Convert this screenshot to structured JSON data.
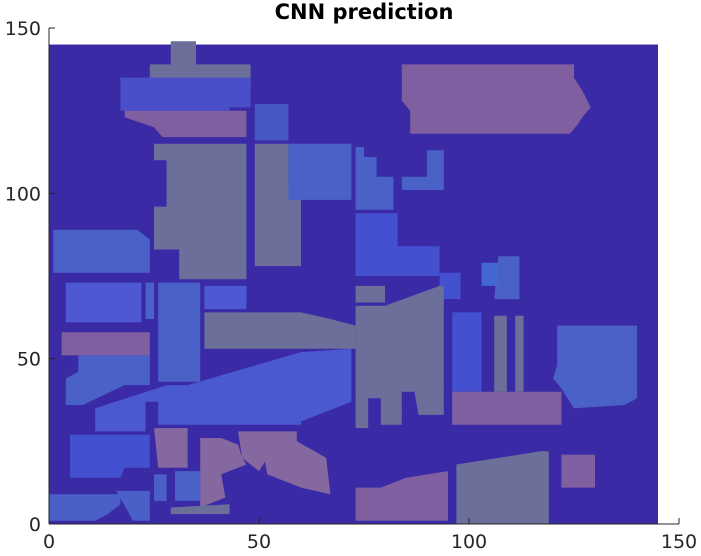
{
  "chart_data": {
    "type": "heatmap",
    "title": "CNN prediction",
    "xlabel": "",
    "ylabel": "",
    "xlim": [
      0,
      150
    ],
    "ylim": [
      0,
      150
    ],
    "data_extent": {
      "x": [
        0,
        145
      ],
      "y": [
        0,
        145
      ]
    },
    "xticks": [
      0,
      50,
      100,
      150
    ],
    "yticks": [
      0,
      50,
      100,
      150
    ],
    "grid": false,
    "colors": {
      "background_class": "#3b2aa6",
      "axis": "#262626"
    },
    "regions": [
      {
        "class": "grey",
        "color": "#6a6e98",
        "polygon": [
          [
            29,
            146
          ],
          [
            29,
            139
          ],
          [
            24,
            139
          ],
          [
            24,
            134
          ],
          [
            36,
            134
          ],
          [
            36,
            132
          ],
          [
            48,
            132
          ],
          [
            48,
            139
          ],
          [
            35,
            139
          ],
          [
            35,
            146
          ]
        ]
      },
      {
        "class": "blue",
        "color": "#4a4fc9",
        "polygon": [
          [
            17,
            135
          ],
          [
            48,
            135
          ],
          [
            48,
            126
          ],
          [
            43,
            126
          ],
          [
            43,
            125
          ],
          [
            17,
            125
          ]
        ]
      },
      {
        "class": "mauve",
        "color": "#7f5f9f",
        "polygon": [
          [
            18,
            125
          ],
          [
            47,
            125
          ],
          [
            47,
            117
          ],
          [
            27,
            117
          ],
          [
            25,
            120
          ],
          [
            18,
            123
          ]
        ]
      },
      {
        "class": "blue",
        "color": "#4758c6",
        "polygon": [
          [
            49,
            127
          ],
          [
            57,
            127
          ],
          [
            57,
            116
          ],
          [
            49,
            116
          ]
        ]
      },
      {
        "class": "grey",
        "color": "#6c6f9a",
        "polygon": [
          [
            25,
            115
          ],
          [
            47,
            115
          ],
          [
            47,
            74
          ],
          [
            31,
            74
          ],
          [
            31,
            83
          ],
          [
            25,
            83
          ],
          [
            25,
            96
          ],
          [
            28,
            96
          ],
          [
            28,
            110
          ],
          [
            25,
            110
          ]
        ]
      },
      {
        "class": "grey",
        "color": "#6c6f9a",
        "polygon": [
          [
            49,
            115
          ],
          [
            57,
            115
          ],
          [
            57,
            103
          ],
          [
            60,
            103
          ],
          [
            60,
            87
          ],
          [
            60,
            78
          ],
          [
            49,
            78
          ]
        ]
      },
      {
        "class": "blue",
        "color": "#4a62c8",
        "polygon": [
          [
            57,
            115
          ],
          [
            72,
            115
          ],
          [
            72,
            98
          ],
          [
            57,
            98
          ]
        ]
      },
      {
        "class": "blue",
        "color": "#4a62c8",
        "polygon": [
          [
            73,
            114
          ],
          [
            75,
            114
          ],
          [
            75,
            111
          ],
          [
            78,
            111
          ],
          [
            78,
            105
          ],
          [
            82,
            105
          ],
          [
            82,
            95
          ],
          [
            73,
            95
          ]
        ]
      },
      {
        "class": "blue",
        "color": "#4a62c8",
        "polygon": [
          [
            90,
            113
          ],
          [
            94,
            113
          ],
          [
            94,
            101
          ],
          [
            84,
            101
          ],
          [
            84,
            105
          ],
          [
            90,
            105
          ]
        ]
      },
      {
        "class": "mauve",
        "color": "#7f5f9f",
        "polygon": [
          [
            84,
            139
          ],
          [
            125,
            139
          ],
          [
            125,
            135
          ],
          [
            127,
            131
          ],
          [
            129,
            126
          ],
          [
            127,
            123
          ],
          [
            126,
            121
          ],
          [
            124,
            118
          ],
          [
            86,
            118
          ],
          [
            86,
            125
          ],
          [
            84,
            128
          ]
        ]
      },
      {
        "class": "blue",
        "color": "#4350d0",
        "polygon": [
          [
            73,
            94
          ],
          [
            83,
            94
          ],
          [
            83,
            84
          ],
          [
            93,
            84
          ],
          [
            93,
            75
          ],
          [
            73,
            75
          ]
        ]
      },
      {
        "class": "blue",
        "color": "#4a62c8",
        "polygon": [
          [
            1,
            89
          ],
          [
            21,
            89
          ],
          [
            24,
            86
          ],
          [
            24,
            76
          ],
          [
            1,
            76
          ]
        ]
      },
      {
        "class": "blue",
        "color": "#4a62c8",
        "polygon": [
          [
            107,
            81
          ],
          [
            112,
            81
          ],
          [
            112,
            68
          ],
          [
            106,
            68
          ]
        ]
      },
      {
        "class": "blue",
        "color": "#4468d2",
        "polygon": [
          [
            103,
            79
          ],
          [
            107,
            79
          ],
          [
            107,
            72
          ],
          [
            103,
            72
          ]
        ]
      },
      {
        "class": "blue",
        "color": "#4350d0",
        "polygon": [
          [
            93,
            76
          ],
          [
            98,
            76
          ],
          [
            98,
            68
          ],
          [
            93,
            68
          ]
        ]
      },
      {
        "class": "blue",
        "color": "#4f58d3",
        "polygon": [
          [
            4,
            73
          ],
          [
            22,
            73
          ],
          [
            22,
            61
          ],
          [
            4,
            61
          ]
        ]
      },
      {
        "class": "blue",
        "color": "#4a62c8",
        "polygon": [
          [
            23,
            73
          ],
          [
            25,
            73
          ],
          [
            25,
            62
          ],
          [
            23,
            62
          ]
        ]
      },
      {
        "class": "blue",
        "color": "#4a62c8",
        "polygon": [
          [
            26,
            73
          ],
          [
            36,
            73
          ],
          [
            36,
            43
          ],
          [
            26,
            43
          ]
        ]
      },
      {
        "class": "blue",
        "color": "#4e58d3",
        "polygon": [
          [
            37,
            72
          ],
          [
            47,
            72
          ],
          [
            47,
            65
          ],
          [
            37,
            65
          ]
        ]
      },
      {
        "class": "grey",
        "color": "#6c6f9a",
        "polygon": [
          [
            37,
            64
          ],
          [
            60,
            64
          ],
          [
            67,
            62
          ],
          [
            73,
            60
          ],
          [
            73,
            53
          ],
          [
            37,
            53
          ]
        ]
      },
      {
        "class": "grey",
        "color": "#6c6f9a",
        "polygon": [
          [
            73,
            72
          ],
          [
            80,
            72
          ],
          [
            80,
            67
          ],
          [
            73,
            67
          ]
        ]
      },
      {
        "class": "grey",
        "color": "#6c6f9a",
        "polygon": [
          [
            73,
            66
          ],
          [
            80,
            66
          ],
          [
            93,
            72
          ],
          [
            94,
            72
          ],
          [
            94,
            33
          ],
          [
            88,
            33
          ],
          [
            87,
            40
          ],
          [
            84,
            40
          ],
          [
            84,
            30
          ],
          [
            79,
            30
          ],
          [
            79,
            38
          ],
          [
            76,
            38
          ],
          [
            76,
            29
          ],
          [
            73,
            29
          ]
        ]
      },
      {
        "class": "mauve",
        "color": "#7f5f9f",
        "polygon": [
          [
            3,
            58
          ],
          [
            24,
            58
          ],
          [
            24,
            51
          ],
          [
            3,
            51
          ]
        ]
      },
      {
        "class": "blue",
        "color": "#4a62c8",
        "polygon": [
          [
            7,
            51
          ],
          [
            24,
            51
          ],
          [
            24,
            42
          ],
          [
            18,
            42
          ],
          [
            8,
            36
          ],
          [
            4,
            36
          ],
          [
            4,
            44
          ],
          [
            7,
            46
          ]
        ]
      },
      {
        "class": "blue",
        "color": "#4a59d0",
        "polygon": [
          [
            28,
            42
          ],
          [
            33,
            42
          ],
          [
            60,
            52
          ],
          [
            72,
            53
          ],
          [
            72,
            37
          ],
          [
            60,
            31
          ],
          [
            60,
            30
          ],
          [
            26,
            30
          ],
          [
            26,
            37
          ],
          [
            23,
            37
          ],
          [
            23,
            28
          ],
          [
            11,
            28
          ],
          [
            11,
            35
          ]
        ]
      },
      {
        "class": "blue",
        "color": "#4350d0",
        "polygon": [
          [
            96,
            64
          ],
          [
            103,
            64
          ],
          [
            103,
            40
          ],
          [
            96,
            40
          ]
        ]
      },
      {
        "class": "grey",
        "color": "#6c6f9a",
        "polygon": [
          [
            106,
            63
          ],
          [
            109,
            63
          ],
          [
            109,
            40
          ],
          [
            106,
            40
          ]
        ]
      },
      {
        "class": "grey",
        "color": "#6c6f9a",
        "polygon": [
          [
            111,
            63
          ],
          [
            113,
            63
          ],
          [
            113,
            40
          ],
          [
            111,
            40
          ]
        ]
      },
      {
        "class": "blue",
        "color": "#4a62c8",
        "polygon": [
          [
            121,
            60
          ],
          [
            140,
            60
          ],
          [
            140,
            38
          ],
          [
            137,
            36
          ],
          [
            125,
            35
          ],
          [
            124,
            37
          ],
          [
            122,
            41
          ],
          [
            120,
            44
          ],
          [
            121,
            48
          ]
        ]
      },
      {
        "class": "mauve",
        "color": "#7f5f9f",
        "polygon": [
          [
            96,
            40
          ],
          [
            122,
            40
          ],
          [
            122,
            30
          ],
          [
            96,
            30
          ]
        ]
      },
      {
        "class": "blue",
        "color": "#4350d0",
        "polygon": [
          [
            5,
            27
          ],
          [
            24,
            27
          ],
          [
            24,
            17
          ],
          [
            18,
            17
          ],
          [
            17,
            14
          ],
          [
            5,
            14
          ]
        ]
      },
      {
        "class": "mauve",
        "color": "#85689f",
        "polygon": [
          [
            25,
            29
          ],
          [
            33,
            29
          ],
          [
            33,
            17
          ],
          [
            26,
            17
          ]
        ]
      },
      {
        "class": "mauve",
        "color": "#85689f",
        "polygon": [
          [
            36,
            26
          ],
          [
            41,
            26
          ],
          [
            45,
            24
          ],
          [
            46,
            20
          ],
          [
            47,
            18
          ],
          [
            41,
            15
          ],
          [
            42,
            8
          ],
          [
            36,
            5
          ]
        ]
      },
      {
        "class": "mauve",
        "color": "#85689f",
        "polygon": [
          [
            45,
            28
          ],
          [
            50,
            28
          ],
          [
            52,
            20
          ],
          [
            50,
            16
          ],
          [
            46,
            20
          ]
        ]
      },
      {
        "class": "mauve",
        "color": "#85689f",
        "polygon": [
          [
            50,
            28
          ],
          [
            59,
            28
          ],
          [
            59,
            25
          ],
          [
            66,
            20
          ],
          [
            67,
            9
          ],
          [
            60,
            11
          ],
          [
            52,
            15
          ]
        ]
      },
      {
        "class": "blue",
        "color": "#4a62c8",
        "polygon": [
          [
            30,
            16
          ],
          [
            36,
            16
          ],
          [
            36,
            7
          ],
          [
            30,
            7
          ]
        ]
      },
      {
        "class": "blue",
        "color": "#4a5fc8",
        "polygon": [
          [
            25,
            15
          ],
          [
            28,
            15
          ],
          [
            28,
            7
          ],
          [
            25,
            7
          ]
        ]
      },
      {
        "class": "blue",
        "color": "#4a5fc8",
        "polygon": [
          [
            0,
            9
          ],
          [
            17,
            9
          ],
          [
            17,
            6
          ],
          [
            14,
            3
          ],
          [
            11,
            1
          ],
          [
            0,
            1
          ]
        ]
      },
      {
        "class": "blue",
        "color": "#4a5fc8",
        "polygon": [
          [
            16,
            10
          ],
          [
            24,
            10
          ],
          [
            24,
            1
          ],
          [
            20,
            1
          ]
        ]
      },
      {
        "class": "grey",
        "color": "#6c6f9a",
        "polygon": [
          [
            29,
            5
          ],
          [
            43,
            6
          ],
          [
            43,
            3
          ],
          [
            29,
            3
          ]
        ]
      },
      {
        "class": "mauve",
        "color": "#7f5f9f",
        "polygon": [
          [
            73,
            11
          ],
          [
            79,
            11
          ],
          [
            85,
            14
          ],
          [
            95,
            16
          ],
          [
            95,
            1
          ],
          [
            73,
            1
          ]
        ]
      },
      {
        "class": "grey",
        "color": "#6c6f9a",
        "polygon": [
          [
            97,
            18
          ],
          [
            117,
            22
          ],
          [
            119,
            22
          ],
          [
            119,
            0
          ],
          [
            97,
            0
          ]
        ]
      },
      {
        "class": "mauve",
        "color": "#7f5f9f",
        "polygon": [
          [
            122,
            21
          ],
          [
            130,
            21
          ],
          [
            130,
            11
          ],
          [
            122,
            11
          ]
        ]
      }
    ]
  }
}
